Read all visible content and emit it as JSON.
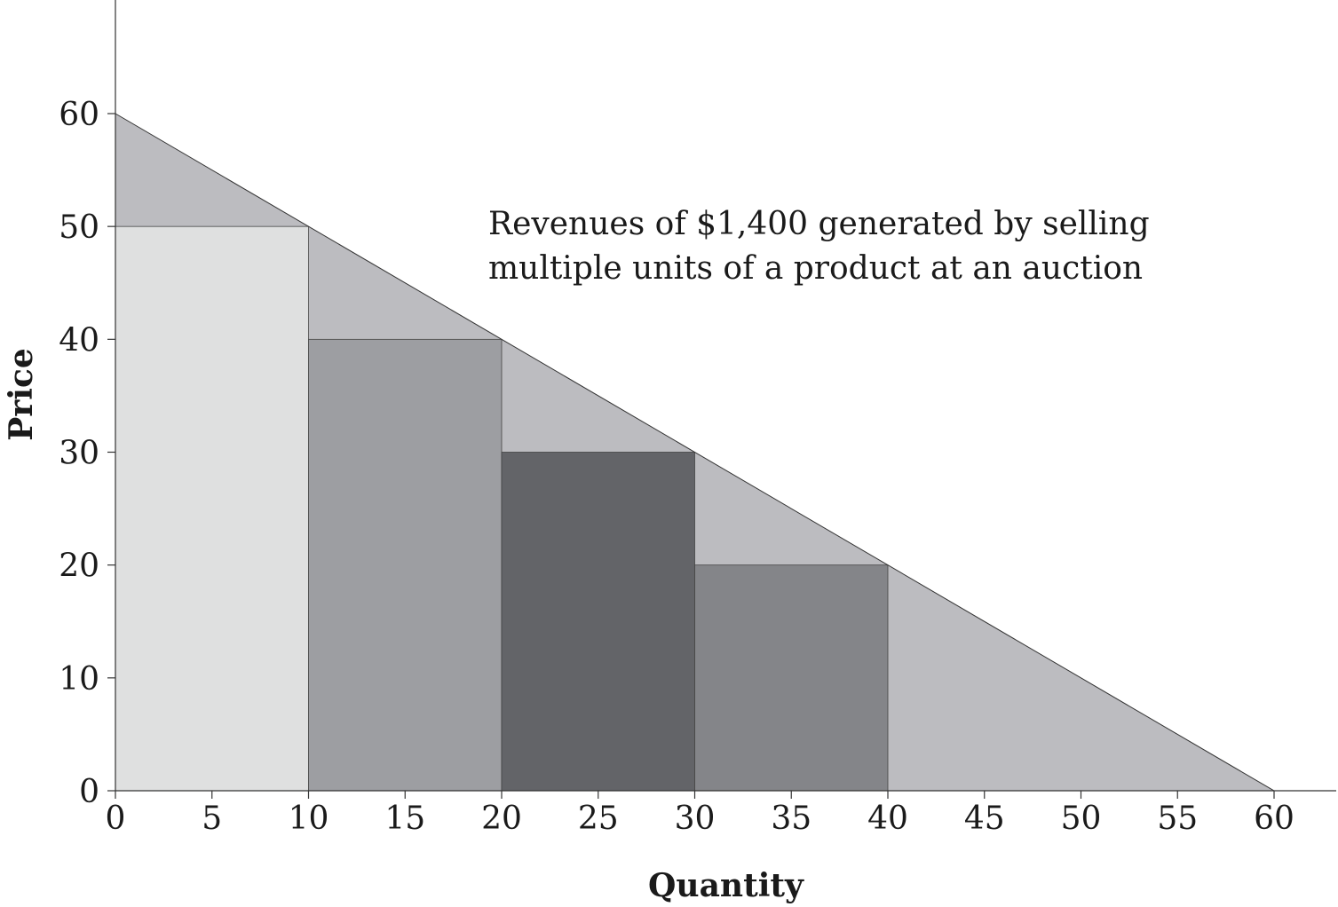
{
  "chart_data": {
    "type": "bar",
    "title": "",
    "xlabel": "Quantity",
    "ylabel": "Price",
    "xlim": [
      0,
      60
    ],
    "ylim": [
      0,
      60
    ],
    "x_ticks": [
      0,
      5,
      10,
      15,
      20,
      25,
      30,
      35,
      40,
      45,
      50,
      55,
      60
    ],
    "y_ticks": [
      0,
      10,
      20,
      30,
      40,
      50,
      60
    ],
    "demand_line": [
      [
        0,
        60
      ],
      [
        60,
        0
      ]
    ],
    "demand_fill_color": "#bcbcc0",
    "bars": [
      {
        "x0": 0,
        "x1": 10,
        "price": 50,
        "color": "#dfe0e0"
      },
      {
        "x0": 10,
        "x1": 20,
        "price": 40,
        "color": "#9d9ea2"
      },
      {
        "x0": 20,
        "x1": 30,
        "price": 30,
        "color": "#636468"
      },
      {
        "x0": 30,
        "x1": 40,
        "price": 20,
        "color": "#848589"
      }
    ],
    "annotation": [
      "Revenues of $1,400 generated by selling",
      "multiple units of a product at an auction"
    ],
    "grid": false,
    "legend": "none"
  }
}
